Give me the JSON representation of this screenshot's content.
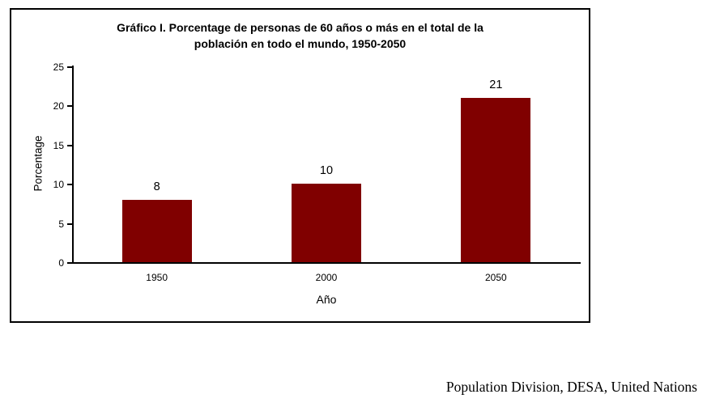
{
  "title": {
    "line1": "Gráfico I. Porcentage de personas de 60 años o más en el total de la",
    "line2": "población en todo el mundo, 1950-2050"
  },
  "source": "Population Division, DESA, United Nations",
  "chart_data": {
    "type": "bar",
    "title": "Gráfico I. Porcentage de personas de 60 años o más en el total de la población en todo el mundo, 1950-2050",
    "categories": [
      "1950",
      "2000",
      "2050"
    ],
    "values": [
      8,
      10,
      21
    ],
    "value_labels": [
      "8",
      "10",
      "21"
    ],
    "xlabel": "Año",
    "ylabel": "Porcentage",
    "ylim": [
      0,
      25
    ],
    "yticks": [
      0,
      5,
      10,
      15,
      20,
      25
    ],
    "bar_color": "#800000",
    "axis_color": "#000000",
    "grid": false,
    "legend": "none"
  }
}
